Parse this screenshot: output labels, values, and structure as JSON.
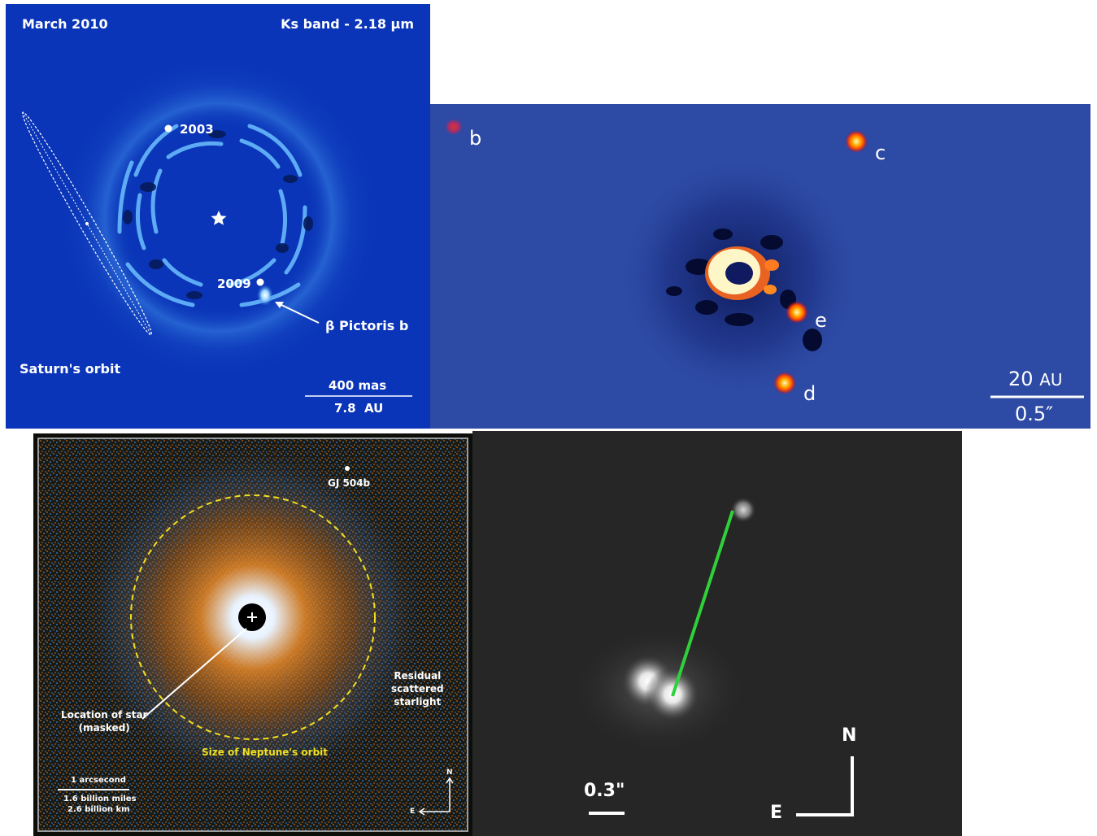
{
  "beta_pic": {
    "date": "March 2010",
    "band": "Ks band - 2.18 μm",
    "label_2003": "2003",
    "label_2009": "2009",
    "planet_label": "β Pictoris b",
    "orbit_label": "Saturn's orbit",
    "scale_top": "400 mas",
    "scale_bottom": "7.8  AU",
    "colors": {
      "background": "#0a35b8",
      "speckle": "#5ab4ff",
      "label": "#ffffff"
    }
  },
  "hr8799": {
    "planet_b": "b",
    "planet_c": "c",
    "planet_d": "d",
    "planet_e": "e",
    "scale_top": "20",
    "scale_unit": "AU",
    "scale_bottom": "0.5″",
    "colors": {
      "background": "#2d4aa4",
      "planet": "#ff4a00",
      "core": "#fff6c8"
    }
  },
  "gj504": {
    "planet_label": "GJ 504b",
    "residual_label_1": "Residual",
    "residual_label_2": "scattered",
    "residual_label_3": "starlight",
    "star_label_1": "Location of star",
    "star_label_2": "(masked)",
    "orbit_label": "Size of Neptune's orbit",
    "scale_arcsec": "1 arcsecond",
    "scale_miles": "1.6 billion miles",
    "scale_km": "2.6 billion km",
    "compass_n": "N",
    "compass_e": "E",
    "colors": {
      "background": "#1a1a14",
      "orange": "#e88a2a",
      "blue": "#3f7fc0",
      "orbit": "#f0e020"
    }
  },
  "binary": {
    "scale_label": "0.3\"",
    "compass_n": "N",
    "compass_e": "E",
    "colors": {
      "background": "#262626",
      "line": "#2fd13a"
    }
  }
}
